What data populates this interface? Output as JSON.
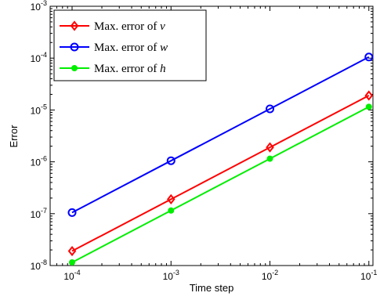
{
  "chart_data": {
    "type": "line",
    "xscale": "log",
    "yscale": "log",
    "xlabel": "Time step",
    "ylabel": "Error",
    "xlim": [
      6e-05,
      0.11
    ],
    "ylim": [
      1e-08,
      0.001
    ],
    "xticks": [
      0.0001,
      0.001,
      0.01,
      0.1
    ],
    "yticks": [
      1e-08,
      1e-07,
      1e-06,
      1e-05,
      0.0001,
      0.001
    ],
    "grid": false,
    "legend_position": "top-left",
    "x": [
      0.0001,
      0.001,
      0.01,
      0.1
    ],
    "series": [
      {
        "name": "Max. error of v",
        "symbol": "v",
        "color": "#ff0000",
        "marker": "diamond",
        "values": [
          1.9e-08,
          1.9e-07,
          1.9e-06,
          1.9e-05
        ]
      },
      {
        "name": "Max. error of w",
        "symbol": "w",
        "color": "#0000ff",
        "marker": "circle",
        "values": [
          1.05e-07,
          1.05e-06,
          1.05e-05,
          0.000105
        ]
      },
      {
        "name": "Max. error of h",
        "symbol": "h",
        "color": "#00ee00",
        "marker": "dot",
        "values": [
          1.15e-08,
          1.15e-07,
          1.15e-06,
          1.15e-05
        ]
      }
    ]
  }
}
